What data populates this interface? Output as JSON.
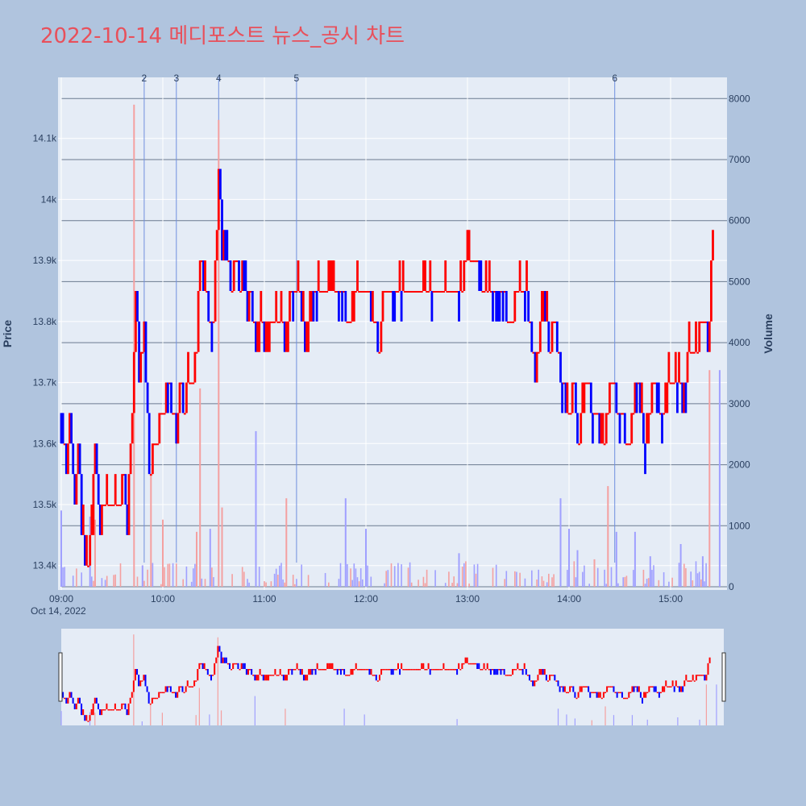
{
  "title": "2022-10-14 메디포스트 뉴스_공시 차트",
  "colors": {
    "up": "#ff0000",
    "down": "#0000ff",
    "up_volume": "#f4a0a0",
    "down_volume": "#a0a0ff",
    "plot_bg": "#e5ecf6",
    "page_bg": "#b0c4de",
    "title": "#e8505b",
    "marker_line": "#6f8fdf"
  },
  "chart_data": {
    "type": "candlestick",
    "xlabel": "",
    "ylabel": "Price",
    "y2label": "Volume",
    "x_tick_labels": [
      "09:00",
      "10:00",
      "11:00",
      "12:00",
      "13:00",
      "14:00",
      "15:00"
    ],
    "x_date_label": "Oct 14, 2022",
    "x_range": [
      "09:00",
      "15:30"
    ],
    "y_tick_labels": [
      "13.4k",
      "13.5k",
      "13.6k",
      "13.7k",
      "13.8k",
      "13.9k",
      "14k",
      "14.1k"
    ],
    "y_tick_values": [
      13400,
      13500,
      13600,
      13700,
      13800,
      13900,
      14000,
      14100
    ],
    "y_range": [
      13360,
      14200
    ],
    "y2_tick_labels": [
      "0",
      "1000",
      "2000",
      "3000",
      "4000",
      "5000",
      "6000",
      "7000",
      "8000"
    ],
    "y2_tick_values": [
      0,
      1000,
      2000,
      3000,
      4000,
      5000,
      6000,
      7000,
      8000
    ],
    "y2_range": [
      0,
      8400
    ],
    "event_markers": [
      {
        "label": "2",
        "time": "09:49"
      },
      {
        "label": "3",
        "time": "10:08"
      },
      {
        "label": "4",
        "time": "10:33"
      },
      {
        "label": "5",
        "time": "11:19"
      },
      {
        "label": "6",
        "time": "14:27"
      }
    ],
    "price_path": [
      [
        "09:00",
        13650
      ],
      [
        "09:03",
        13550
      ],
      [
        "09:05",
        13650
      ],
      [
        "09:08",
        13500
      ],
      [
        "09:10",
        13600
      ],
      [
        "09:12",
        13450
      ],
      [
        "09:15",
        13400
      ],
      [
        "09:18",
        13450
      ],
      [
        "09:20",
        13600
      ],
      [
        "09:23",
        13450
      ],
      [
        "09:25",
        13500
      ],
      [
        "09:30",
        13500
      ],
      [
        "09:35",
        13500
      ],
      [
        "09:37",
        13550
      ],
      [
        "09:39",
        13450
      ],
      [
        "09:40",
        13550
      ],
      [
        "09:42",
        13650
      ],
      [
        "09:44",
        13850
      ],
      [
        "09:46",
        13700
      ],
      [
        "09:49",
        13800
      ],
      [
        "09:52",
        13550
      ],
      [
        "09:55",
        13600
      ],
      [
        "10:00",
        13650
      ],
      [
        "10:03",
        13700
      ],
      [
        "10:06",
        13650
      ],
      [
        "10:08",
        13600
      ],
      [
        "10:10",
        13700
      ],
      [
        "10:13",
        13650
      ],
      [
        "10:15",
        13700
      ],
      [
        "10:18",
        13700
      ],
      [
        "10:20",
        13750
      ],
      [
        "10:22",
        13900
      ],
      [
        "10:25",
        13850
      ],
      [
        "10:28",
        13800
      ],
      [
        "10:30",
        13800
      ],
      [
        "10:33",
        14050
      ],
      [
        "10:35",
        13900
      ],
      [
        "10:37",
        13950
      ],
      [
        "10:40",
        13850
      ],
      [
        "10:43",
        13900
      ],
      [
        "10:45",
        13850
      ],
      [
        "10:48",
        13900
      ],
      [
        "10:50",
        13800
      ],
      [
        "10:52",
        13850
      ],
      [
        "10:55",
        13750
      ],
      [
        "10:58",
        13800
      ],
      [
        "11:00",
        13750
      ],
      [
        "11:05",
        13800
      ],
      [
        "11:10",
        13800
      ],
      [
        "11:13",
        13750
      ],
      [
        "11:15",
        13850
      ],
      [
        "11:20",
        13850
      ],
      [
        "11:25",
        13750
      ],
      [
        "11:28",
        13850
      ],
      [
        "11:35",
        13850
      ],
      [
        "11:45",
        13850
      ],
      [
        "11:50",
        13800
      ],
      [
        "11:55",
        13850
      ],
      [
        "12:00",
        13850
      ],
      [
        "12:08",
        13750
      ],
      [
        "12:10",
        13850
      ],
      [
        "12:15",
        13850
      ],
      [
        "12:30",
        13850
      ],
      [
        "12:45",
        13850
      ],
      [
        "12:55",
        13850
      ],
      [
        "13:00",
        13900
      ],
      [
        "13:05",
        13900
      ],
      [
        "13:10",
        13850
      ],
      [
        "13:20",
        13850
      ],
      [
        "13:25",
        13800
      ],
      [
        "13:30",
        13850
      ],
      [
        "13:35",
        13850
      ],
      [
        "13:40",
        13700
      ],
      [
        "13:45",
        13850
      ],
      [
        "13:48",
        13750
      ],
      [
        "13:52",
        13800
      ],
      [
        "13:55",
        13700
      ],
      [
        "14:00",
        13650
      ],
      [
        "14:03",
        13700
      ],
      [
        "14:05",
        13600
      ],
      [
        "14:10",
        13700
      ],
      [
        "14:15",
        13650
      ],
      [
        "14:20",
        13600
      ],
      [
        "14:25",
        13700
      ],
      [
        "14:30",
        13650
      ],
      [
        "14:35",
        13600
      ],
      [
        "14:40",
        13700
      ],
      [
        "14:45",
        13600
      ],
      [
        "14:50",
        13700
      ],
      [
        "14:55",
        13650
      ],
      [
        "15:00",
        13700
      ],
      [
        "15:05",
        13700
      ],
      [
        "15:07",
        13650
      ],
      [
        "15:10",
        13750
      ],
      [
        "15:15",
        13750
      ],
      [
        "15:18",
        13800
      ],
      [
        "15:20",
        13800
      ],
      [
        "15:22",
        13750
      ],
      [
        "15:25",
        13950
      ]
    ],
    "volume_spikes": [
      [
        "09:00",
        1250,
        "down"
      ],
      [
        "09:17",
        1150,
        "down"
      ],
      [
        "09:20",
        1100,
        "up"
      ],
      [
        "09:43",
        7900,
        "up"
      ],
      [
        "09:48",
        350,
        "down"
      ],
      [
        "09:53",
        1850,
        "up"
      ],
      [
        "10:00",
        1100,
        "up"
      ],
      [
        "10:20",
        900,
        "up"
      ],
      [
        "10:22",
        3250,
        "up"
      ],
      [
        "10:28",
        950,
        "down"
      ],
      [
        "10:33",
        7650,
        "up"
      ],
      [
        "10:35",
        1300,
        "up"
      ],
      [
        "10:55",
        2550,
        "down"
      ],
      [
        "11:13",
        1450,
        "up"
      ],
      [
        "11:48",
        1450,
        "down"
      ],
      [
        "12:00",
        950,
        "down"
      ],
      [
        "12:55",
        550,
        "down"
      ],
      [
        "13:55",
        1450,
        "down"
      ],
      [
        "14:00",
        950,
        "down"
      ],
      [
        "14:05",
        600,
        "down"
      ],
      [
        "14:15",
        450,
        "up"
      ],
      [
        "14:23",
        1650,
        "up"
      ],
      [
        "14:28",
        900,
        "down"
      ],
      [
        "14:39",
        900,
        "down"
      ],
      [
        "14:48",
        500,
        "down"
      ],
      [
        "15:06",
        700,
        "down"
      ],
      [
        "15:19",
        500,
        "down"
      ],
      [
        "15:23",
        3550,
        "up"
      ],
      [
        "15:29",
        3550,
        "down"
      ]
    ]
  }
}
